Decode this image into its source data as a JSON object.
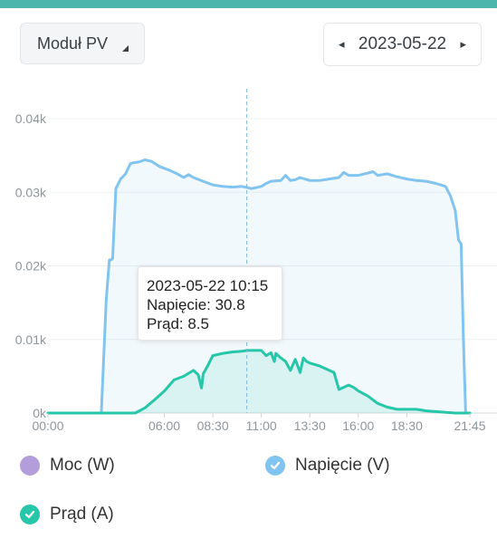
{
  "header": {
    "module_label": "Moduł PV",
    "date": "2023-05-22",
    "prev_arrow": "◂",
    "next_arrow": "▸"
  },
  "tooltip": {
    "time": "2023-05-22 10:15",
    "line1": "Napięcie: 30.8",
    "line2": "Prąd: 8.5"
  },
  "legend": [
    {
      "label": "Moc (W)",
      "color": "#b39ddb",
      "checked": false
    },
    {
      "label": "Napięcie (V)",
      "color": "#81c4f0",
      "checked": true
    },
    {
      "label": "Prąd (A)",
      "color": "#26c6a8",
      "checked": true
    }
  ],
  "chart_data": {
    "type": "area",
    "x_unit": "minutes since 00:00",
    "xlim": [
      0,
      1305
    ],
    "ylim": [
      0,
      40
    ],
    "y_ticks": [
      "0k",
      "0.01k",
      "0.02k",
      "0.03k",
      "0.04k"
    ],
    "y_tick_values": [
      0,
      10,
      20,
      30,
      40
    ],
    "x_ticks": [
      "00:00",
      "06:00",
      "08:30",
      "11:00",
      "13:30",
      "16:00",
      "18:30",
      "21:45"
    ],
    "x_tick_values": [
      0,
      360,
      510,
      660,
      810,
      960,
      1110,
      1305
    ],
    "crosshair_x": 615,
    "series": [
      {
        "name": "Napięcie (V)",
        "color": "#81c4f0",
        "x": [
          0,
          165,
          180,
          190,
          195,
          200,
          210,
          225,
          240,
          255,
          262,
          280,
          300,
          320,
          345,
          375,
          400,
          420,
          435,
          450,
          480,
          510,
          540,
          570,
          600,
          630,
          660,
          675,
          690,
          720,
          735,
          750,
          765,
          780,
          810,
          840,
          870,
          900,
          915,
          930,
          960,
          990,
          1005,
          1020,
          1050,
          1080,
          1110,
          1140,
          1170,
          1200,
          1230,
          1245,
          1260,
          1270,
          1278,
          1285,
          1292,
          1305
        ],
        "y": [
          0,
          0,
          15.3,
          20.8,
          20.8,
          21.0,
          30.5,
          31.8,
          32.5,
          33.9,
          34.0,
          34.1,
          34.4,
          34.2,
          33.5,
          33.0,
          32.5,
          32.0,
          32.4,
          32.0,
          31.5,
          31.0,
          30.8,
          30.7,
          30.8,
          30.5,
          30.8,
          31.2,
          31.5,
          31.6,
          32.3,
          31.6,
          31.7,
          32.0,
          31.6,
          31.6,
          31.8,
          32.0,
          32.7,
          32.3,
          32.3,
          32.6,
          32.8,
          32.3,
          32.5,
          32.1,
          31.8,
          31.6,
          31.5,
          31.2,
          30.8,
          29.5,
          27.5,
          23.5,
          23.0,
          10.0,
          0,
          0
        ]
      },
      {
        "name": "Prąd (A)",
        "color": "#26c6a8",
        "x": [
          0,
          270,
          300,
          330,
          360,
          390,
          420,
          450,
          465,
          475,
          480,
          495,
          510,
          540,
          570,
          600,
          615,
          630,
          660,
          675,
          690,
          700,
          705,
          720,
          735,
          750,
          765,
          780,
          790,
          800,
          810,
          840,
          870,
          885,
          900,
          915,
          930,
          945,
          960,
          990,
          1020,
          1050,
          1080,
          1110,
          1140,
          1170,
          1200,
          1230,
          1260,
          1305
        ],
        "y": [
          0,
          0,
          0.7,
          1.8,
          3.0,
          4.5,
          5.0,
          5.8,
          5.2,
          3.4,
          5.3,
          6.5,
          7.8,
          8.1,
          8.3,
          8.4,
          8.5,
          8.5,
          8.5,
          7.8,
          8.2,
          7.0,
          8.1,
          7.5,
          7.0,
          5.8,
          7.3,
          5.5,
          7.5,
          7.0,
          6.8,
          6.4,
          5.8,
          5.5,
          3.2,
          3.5,
          3.8,
          3.5,
          3.0,
          2.3,
          1.3,
          0.8,
          0.5,
          0.5,
          0.5,
          0.3,
          0.2,
          0.1,
          0,
          0
        ]
      }
    ]
  }
}
